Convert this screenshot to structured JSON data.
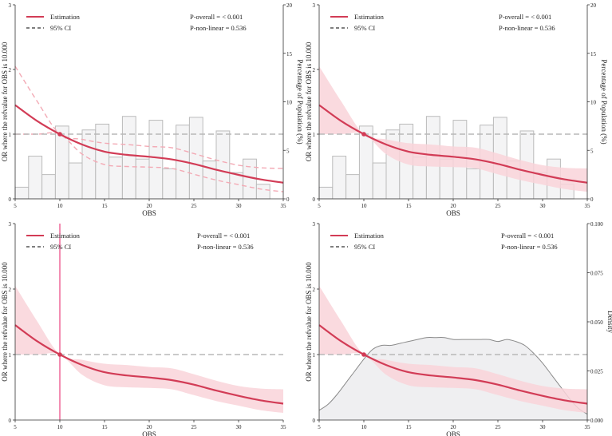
{
  "chart_data": [
    {
      "type": "line",
      "panel": "top-left",
      "xlabel": "OBS",
      "ylabel": "OR where the refvalue for OBS is 10.000",
      "y2label": "Percentage of Population (%)",
      "xlim": [
        5,
        35
      ],
      "ylim": [
        0,
        3
      ],
      "y2lim": [
        0,
        20
      ],
      "xticks": [
        "5",
        "10",
        "15",
        "20",
        "25",
        "30",
        "35"
      ],
      "yticks": [
        "0",
        "1",
        "2",
        "3"
      ],
      "y2ticks": [
        "0",
        "5",
        "10",
        "15",
        "20"
      ],
      "legend": [
        "Estimation",
        "95% CI"
      ],
      "annotations": [
        "P-overall = < 0.001",
        "P-non-linear = 0.536"
      ],
      "reference_point": [
        10,
        1
      ],
      "ci_style": "dashed-lines",
      "secondary": "histogram",
      "x": [
        5,
        7.5,
        10,
        12.5,
        15,
        17.5,
        20,
        22.5,
        25,
        27.5,
        30,
        32.5,
        35
      ],
      "estimate": [
        1.45,
        1.2,
        1.0,
        0.84,
        0.73,
        0.68,
        0.65,
        0.61,
        0.54,
        0.45,
        0.37,
        0.3,
        0.25
      ],
      "ci_lower": [
        1.0,
        1.0,
        1.0,
        0.69,
        0.53,
        0.5,
        0.49,
        0.47,
        0.38,
        0.29,
        0.22,
        0.15,
        0.11
      ],
      "ci_upper": [
        2.05,
        1.5,
        1.0,
        0.92,
        0.86,
        0.84,
        0.81,
        0.79,
        0.7,
        0.6,
        0.52,
        0.48,
        0.47
      ],
      "histogram": {
        "bin_edges": [
          5,
          6.5,
          8,
          9.5,
          11,
          12.5,
          14,
          15.5,
          17,
          18.5,
          20,
          21.5,
          23,
          24.5,
          26,
          27.5,
          29,
          30.5,
          32,
          33.5,
          35
        ],
        "percent": [
          1.2,
          4.4,
          2.5,
          7.5,
          3.7,
          7.1,
          7.7,
          4.3,
          8.5,
          4.1,
          8.1,
          3.1,
          7.6,
          8.4,
          3.9,
          7.0,
          2.7,
          4.1,
          1.5,
          0
        ]
      }
    },
    {
      "type": "line",
      "panel": "top-right",
      "xlabel": "OBS",
      "ylabel": "OR where the refvalue for OBS is 10.000",
      "y2label": "Percentage of Population (%)",
      "xlim": [
        5,
        35
      ],
      "ylim": [
        0,
        3
      ],
      "y2lim": [
        0,
        20
      ],
      "xticks": [
        "5",
        "10",
        "15",
        "20",
        "25",
        "30",
        "35"
      ],
      "yticks": [
        "0",
        "1",
        "2",
        "3"
      ],
      "y2ticks": [
        "0",
        "5",
        "10",
        "15",
        "20"
      ],
      "legend": [
        "Estimation",
        "95% CI"
      ],
      "annotations": [
        "P-overall = < 0.001",
        "P-non-linear = 0.536"
      ],
      "reference_point": [
        10,
        1
      ],
      "ci_style": "shaded-band",
      "secondary": "histogram",
      "x": [
        5,
        7.5,
        10,
        12.5,
        15,
        17.5,
        20,
        22.5,
        25,
        27.5,
        30,
        32.5,
        35
      ],
      "estimate": [
        1.45,
        1.2,
        1.0,
        0.84,
        0.73,
        0.68,
        0.65,
        0.61,
        0.54,
        0.45,
        0.37,
        0.3,
        0.25
      ],
      "ci_lower": [
        1.0,
        1.0,
        1.0,
        0.69,
        0.53,
        0.5,
        0.49,
        0.47,
        0.38,
        0.29,
        0.22,
        0.15,
        0.11
      ],
      "ci_upper": [
        2.05,
        1.5,
        1.0,
        0.92,
        0.86,
        0.84,
        0.81,
        0.79,
        0.7,
        0.6,
        0.52,
        0.48,
        0.47
      ],
      "histogram": {
        "bin_edges": [
          5,
          6.5,
          8,
          9.5,
          11,
          12.5,
          14,
          15.5,
          17,
          18.5,
          20,
          21.5,
          23,
          24.5,
          26,
          27.5,
          29,
          30.5,
          32,
          33.5,
          35
        ],
        "percent": [
          1.2,
          4.4,
          2.5,
          7.5,
          3.7,
          7.1,
          7.7,
          4.3,
          8.5,
          4.1,
          8.1,
          3.1,
          7.6,
          8.4,
          3.9,
          7.0,
          2.7,
          4.1,
          1.5,
          0
        ]
      }
    },
    {
      "type": "line",
      "panel": "bottom-left",
      "xlabel": "OBS",
      "ylabel": "OR where the refvalue for OBS is 10.000",
      "xlim": [
        5,
        35
      ],
      "ylim": [
        0,
        3
      ],
      "xticks": [
        "5",
        "10",
        "15",
        "20",
        "25",
        "30",
        "35"
      ],
      "yticks": [
        "0",
        "1",
        "2",
        "3"
      ],
      "legend": [
        "Estimation",
        "95% CI"
      ],
      "annotations": [
        "P-overall = < 0.001",
        "P-non-linear = 0.536"
      ],
      "reference_point": [
        10,
        1
      ],
      "reference_vline": 10,
      "ci_style": "shaded-band",
      "secondary": "none",
      "x": [
        5,
        7.5,
        10,
        12.5,
        15,
        17.5,
        20,
        22.5,
        25,
        27.5,
        30,
        32.5,
        35
      ],
      "estimate": [
        1.45,
        1.2,
        1.0,
        0.84,
        0.73,
        0.68,
        0.65,
        0.61,
        0.54,
        0.45,
        0.37,
        0.3,
        0.25
      ],
      "ci_lower": [
        1.0,
        1.0,
        1.0,
        0.69,
        0.53,
        0.5,
        0.49,
        0.47,
        0.38,
        0.29,
        0.22,
        0.15,
        0.11
      ],
      "ci_upper": [
        2.05,
        1.5,
        1.0,
        0.92,
        0.86,
        0.84,
        0.81,
        0.79,
        0.7,
        0.6,
        0.52,
        0.48,
        0.47
      ]
    },
    {
      "type": "line",
      "panel": "bottom-right",
      "xlabel": "OBS",
      "ylabel": "OR where the refvalue for OBS is 10.000",
      "y2label": "Density",
      "xlim": [
        5,
        35
      ],
      "ylim": [
        0,
        3
      ],
      "y2lim": [
        0,
        0.1
      ],
      "xticks": [
        "5",
        "10",
        "15",
        "20",
        "25",
        "30",
        "35"
      ],
      "yticks": [
        "0",
        "1",
        "2",
        "3"
      ],
      "y2ticks": [
        "0.000",
        "0.025",
        "0.050",
        "0.075",
        "0.100"
      ],
      "legend": [
        "Estimation",
        "95% CI"
      ],
      "annotations": [
        "P-overall = < 0.001",
        "P-non-linear = 0.536"
      ],
      "reference_point": [
        10,
        1
      ],
      "ci_style": "shaded-band",
      "secondary": "density",
      "x": [
        5,
        7.5,
        10,
        12.5,
        15,
        17.5,
        20,
        22.5,
        25,
        27.5,
        30,
        32.5,
        35
      ],
      "estimate": [
        1.45,
        1.2,
        1.0,
        0.84,
        0.73,
        0.68,
        0.65,
        0.61,
        0.54,
        0.45,
        0.37,
        0.3,
        0.25
      ],
      "ci_lower": [
        1.0,
        1.0,
        1.0,
        0.69,
        0.53,
        0.5,
        0.49,
        0.47,
        0.38,
        0.29,
        0.22,
        0.15,
        0.11
      ],
      "ci_upper": [
        2.05,
        1.5,
        1.0,
        0.92,
        0.86,
        0.84,
        0.81,
        0.79,
        0.7,
        0.6,
        0.52,
        0.48,
        0.47
      ],
      "density": {
        "x": [
          5,
          6,
          7,
          8,
          9,
          10,
          11,
          12,
          13,
          14,
          15,
          16,
          17,
          18,
          19,
          20,
          21,
          22,
          23,
          24,
          25,
          26,
          27,
          28,
          29,
          30,
          31,
          32,
          33,
          34,
          35
        ],
        "y": [
          0.005,
          0.008,
          0.013,
          0.019,
          0.025,
          0.031,
          0.036,
          0.038,
          0.038,
          0.039,
          0.04,
          0.041,
          0.042,
          0.042,
          0.042,
          0.041,
          0.041,
          0.041,
          0.041,
          0.041,
          0.04,
          0.041,
          0.04,
          0.038,
          0.034,
          0.029,
          0.023,
          0.017,
          0.011,
          0.006,
          0.003
        ]
      }
    }
  ]
}
